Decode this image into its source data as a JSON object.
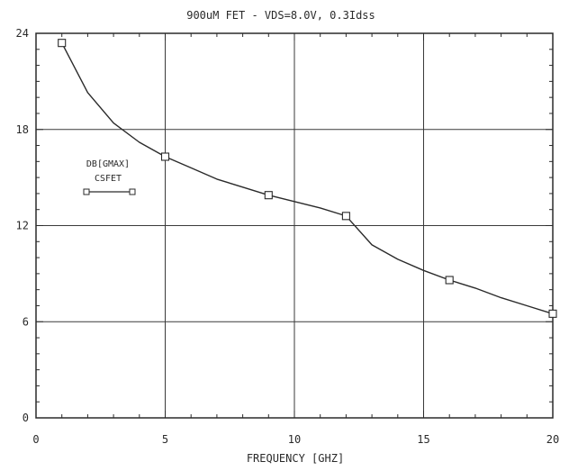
{
  "chart_data": {
    "type": "line",
    "title": "900uM FET - VDS=8.0V, 0.3Idss",
    "xlabel": "FREQUENCY [GHZ]",
    "ylabel": "",
    "xlim": [
      0,
      20
    ],
    "ylim": [
      0,
      24
    ],
    "xticks": [
      0,
      5,
      10,
      15,
      20
    ],
    "yticks": [
      0,
      6,
      12,
      18,
      24
    ],
    "xtick_labels": [
      "0",
      "5",
      "10",
      "15",
      "20"
    ],
    "ytick_labels": [
      "0",
      "6",
      "12",
      "18",
      "24"
    ],
    "grid": true,
    "legend": {
      "position": "left",
      "lines": [
        "DB[GMAX]",
        "CSFET"
      ]
    },
    "series": [
      {
        "name": "DB[GMAX] CSFET",
        "color": "#2a2a2a",
        "marker": "square",
        "markers": [
          {
            "x": 1,
            "y": 23.4
          },
          {
            "x": 5,
            "y": 16.3
          },
          {
            "x": 9,
            "y": 13.9
          },
          {
            "x": 12,
            "y": 12.6
          },
          {
            "x": 16,
            "y": 8.6
          },
          {
            "x": 20,
            "y": 6.5
          }
        ],
        "curve": [
          {
            "x": 1,
            "y": 23.4
          },
          {
            "x": 2,
            "y": 20.3
          },
          {
            "x": 3,
            "y": 18.4
          },
          {
            "x": 4,
            "y": 17.2
          },
          {
            "x": 5,
            "y": 16.3
          },
          {
            "x": 6,
            "y": 15.6
          },
          {
            "x": 7,
            "y": 14.9
          },
          {
            "x": 8,
            "y": 14.4
          },
          {
            "x": 9,
            "y": 13.9
          },
          {
            "x": 10,
            "y": 13.5
          },
          {
            "x": 11,
            "y": 13.1
          },
          {
            "x": 12,
            "y": 12.6
          },
          {
            "x": 13,
            "y": 10.8
          },
          {
            "x": 14,
            "y": 9.9
          },
          {
            "x": 15,
            "y": 9.2
          },
          {
            "x": 16,
            "y": 8.6
          },
          {
            "x": 17,
            "y": 8.1
          },
          {
            "x": 18,
            "y": 7.5
          },
          {
            "x": 19,
            "y": 7.0
          },
          {
            "x": 20,
            "y": 6.5
          }
        ]
      }
    ]
  }
}
